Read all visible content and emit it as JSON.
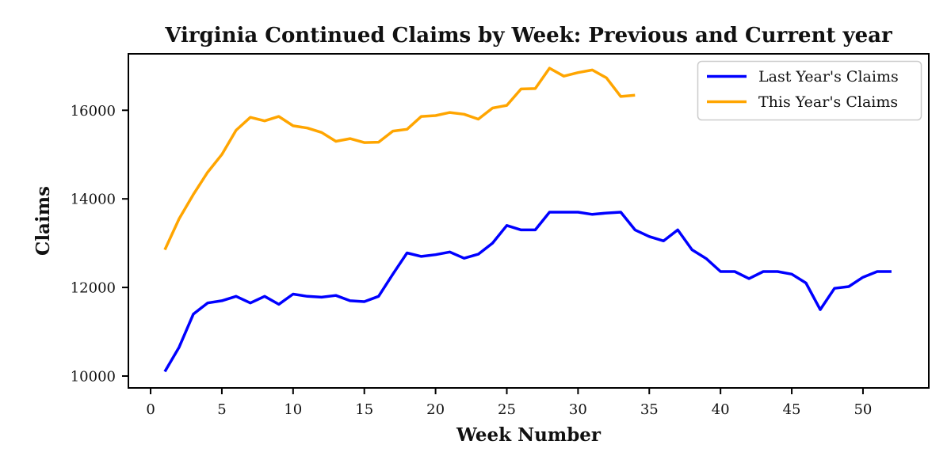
{
  "chart_data": {
    "type": "line",
    "title": "Virginia Continued Claims by Week: Previous and Current year",
    "xlabel": "Week Number",
    "ylabel": "Claims",
    "x_ticks": [
      0,
      5,
      10,
      15,
      20,
      25,
      30,
      35,
      40,
      45,
      50
    ],
    "y_ticks": [
      10000,
      12000,
      14000,
      16000
    ],
    "xlim": [
      -1.56,
      54.62
    ],
    "ylim": [
      9732,
      17274
    ],
    "grid": false,
    "legend_position": "upper right",
    "series": [
      {
        "name": "Last Year's Claims",
        "color": "#0000ff",
        "x": [
          1,
          2,
          3,
          4,
          5,
          6,
          7,
          8,
          9,
          10,
          11,
          12,
          13,
          14,
          15,
          16,
          17,
          18,
          19,
          20,
          21,
          22,
          23,
          24,
          25,
          26,
          27,
          28,
          29,
          30,
          31,
          32,
          33,
          34,
          35,
          36,
          37,
          38,
          39,
          40,
          41,
          42,
          43,
          44,
          45,
          46,
          47,
          48,
          49,
          50,
          51,
          52
        ],
        "values": [
          10100,
          10650,
          11400,
          11650,
          11700,
          11800,
          11650,
          11800,
          11620,
          11850,
          11800,
          11780,
          11820,
          11700,
          11680,
          11800,
          12300,
          12780,
          12700,
          12740,
          12800,
          12660,
          12750,
          13000,
          13400,
          13300,
          13300,
          13700,
          13700,
          13700,
          13650,
          13680,
          13700,
          13300,
          13150,
          13050,
          13300,
          12850,
          12650,
          12360,
          12360,
          12200,
          12360,
          12360,
          12300,
          12100,
          11500,
          11980,
          12020,
          12230,
          12360,
          12360
        ]
      },
      {
        "name": "This Year's Claims",
        "color": "#ffa500",
        "x": [
          1,
          2,
          3,
          4,
          5,
          6,
          7,
          8,
          9,
          10,
          11,
          12,
          13,
          14,
          15,
          16,
          17,
          18,
          19,
          20,
          21,
          22,
          23,
          24,
          25,
          26,
          27,
          28,
          29,
          30,
          31,
          32,
          33,
          34
        ],
        "values": [
          12850,
          13550,
          14100,
          14600,
          15000,
          15550,
          15840,
          15760,
          15860,
          15650,
          15600,
          15500,
          15300,
          15360,
          15270,
          15280,
          15530,
          15570,
          15860,
          15880,
          15950,
          15910,
          15800,
          16050,
          16110,
          16480,
          16490,
          16950,
          16770,
          16850,
          16910,
          16730,
          16310,
          16340
        ]
      }
    ]
  },
  "legend": {
    "entries": [
      {
        "label": "Last Year's Claims",
        "color": "#0000ff"
      },
      {
        "label": "This Year's Claims",
        "color": "#ffa500"
      }
    ]
  }
}
